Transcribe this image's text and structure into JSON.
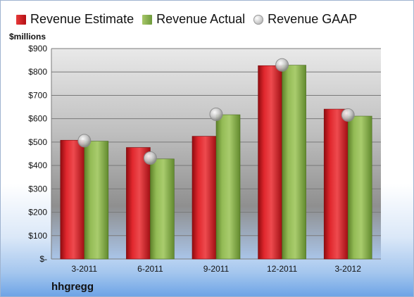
{
  "legend": {
    "estimate": "Revenue Estimate",
    "actual": "Revenue Actual",
    "gaap": "Revenue GAAP"
  },
  "footer": {
    "company": "hhgregg"
  },
  "colors": {
    "estimate": "#c8161d",
    "actual": "#8db54f",
    "gaap": "#bfbfbf"
  },
  "chart_data": {
    "type": "bar",
    "ylabel": "$millions",
    "ylim": [
      0,
      900
    ],
    "yticks": [
      0,
      100,
      200,
      300,
      400,
      500,
      600,
      700,
      800,
      900
    ],
    "ytick_labels": [
      "$-",
      "$100",
      "$200",
      "$300",
      "$400",
      "$500",
      "$600",
      "$700",
      "$800",
      "$900"
    ],
    "grid": true,
    "legend_position": "top",
    "categories": [
      "3-2011",
      "6-2011",
      "9-2011",
      "12-2011",
      "3-2012"
    ],
    "series": [
      {
        "name": "Revenue Estimate",
        "kind": "bar",
        "values": [
          508,
          477,
          525,
          827,
          641
        ]
      },
      {
        "name": "Revenue Actual",
        "kind": "bar",
        "values": [
          504,
          428,
          617,
          829,
          611
        ]
      },
      {
        "name": "Revenue GAAP",
        "kind": "marker",
        "values": [
          506,
          432,
          619,
          830,
          616
        ]
      }
    ]
  }
}
